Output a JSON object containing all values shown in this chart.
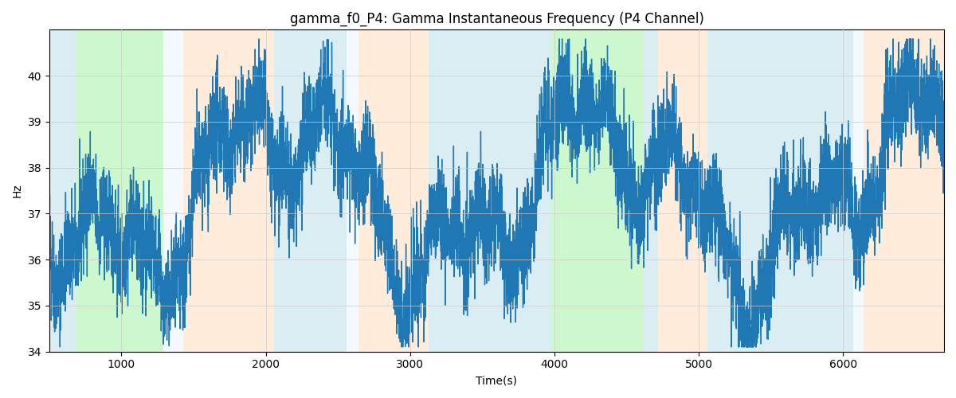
{
  "title": "gamma_f0_P4: Gamma Instantaneous Frequency (P4 Channel)",
  "xlabel": "Time(s)",
  "ylabel": "Hz",
  "ylim": [
    34,
    41
  ],
  "xlim": [
    500,
    6700
  ],
  "yticks": [
    34,
    35,
    36,
    37,
    38,
    39,
    40
  ],
  "xticks": [
    1000,
    2000,
    3000,
    4000,
    5000,
    6000
  ],
  "background_bands": [
    {
      "xmin": 500,
      "xmax": 680,
      "color": "#ADD8E6",
      "alpha": 0.45
    },
    {
      "xmin": 680,
      "xmax": 1290,
      "color": "#90EE90",
      "alpha": 0.45
    },
    {
      "xmin": 1290,
      "xmax": 1430,
      "color": "#ddeeff",
      "alpha": 0.3
    },
    {
      "xmin": 1430,
      "xmax": 2060,
      "color": "#FFDAB9",
      "alpha": 0.5
    },
    {
      "xmin": 2060,
      "xmax": 2560,
      "color": "#ADD8E6",
      "alpha": 0.45
    },
    {
      "xmin": 2560,
      "xmax": 2640,
      "color": "#ddeeff",
      "alpha": 0.3
    },
    {
      "xmin": 2640,
      "xmax": 3130,
      "color": "#FFDAB9",
      "alpha": 0.5
    },
    {
      "xmin": 3130,
      "xmax": 3870,
      "color": "#ADD8E6",
      "alpha": 0.45
    },
    {
      "xmin": 3870,
      "xmax": 3980,
      "color": "#ADD8E6",
      "alpha": 0.45
    },
    {
      "xmin": 3980,
      "xmax": 4620,
      "color": "#90EE90",
      "alpha": 0.45
    },
    {
      "xmin": 4620,
      "xmax": 4720,
      "color": "#ADD8E6",
      "alpha": 0.45
    },
    {
      "xmin": 4720,
      "xmax": 5060,
      "color": "#FFDAB9",
      "alpha": 0.5
    },
    {
      "xmin": 5060,
      "xmax": 6070,
      "color": "#ADD8E6",
      "alpha": 0.45
    },
    {
      "xmin": 6070,
      "xmax": 6140,
      "color": "#ddeeff",
      "alpha": 0.3
    },
    {
      "xmin": 6140,
      "xmax": 6700,
      "color": "#FFDAB9",
      "alpha": 0.5
    }
  ],
  "line_color": "#1f77b4",
  "line_width": 1.0,
  "grid_color": "#cccccc",
  "seed": 42,
  "n_points": 6200,
  "time_start": 500,
  "time_end": 6700,
  "figsize": [
    12.0,
    5.0
  ],
  "dpi": 100
}
